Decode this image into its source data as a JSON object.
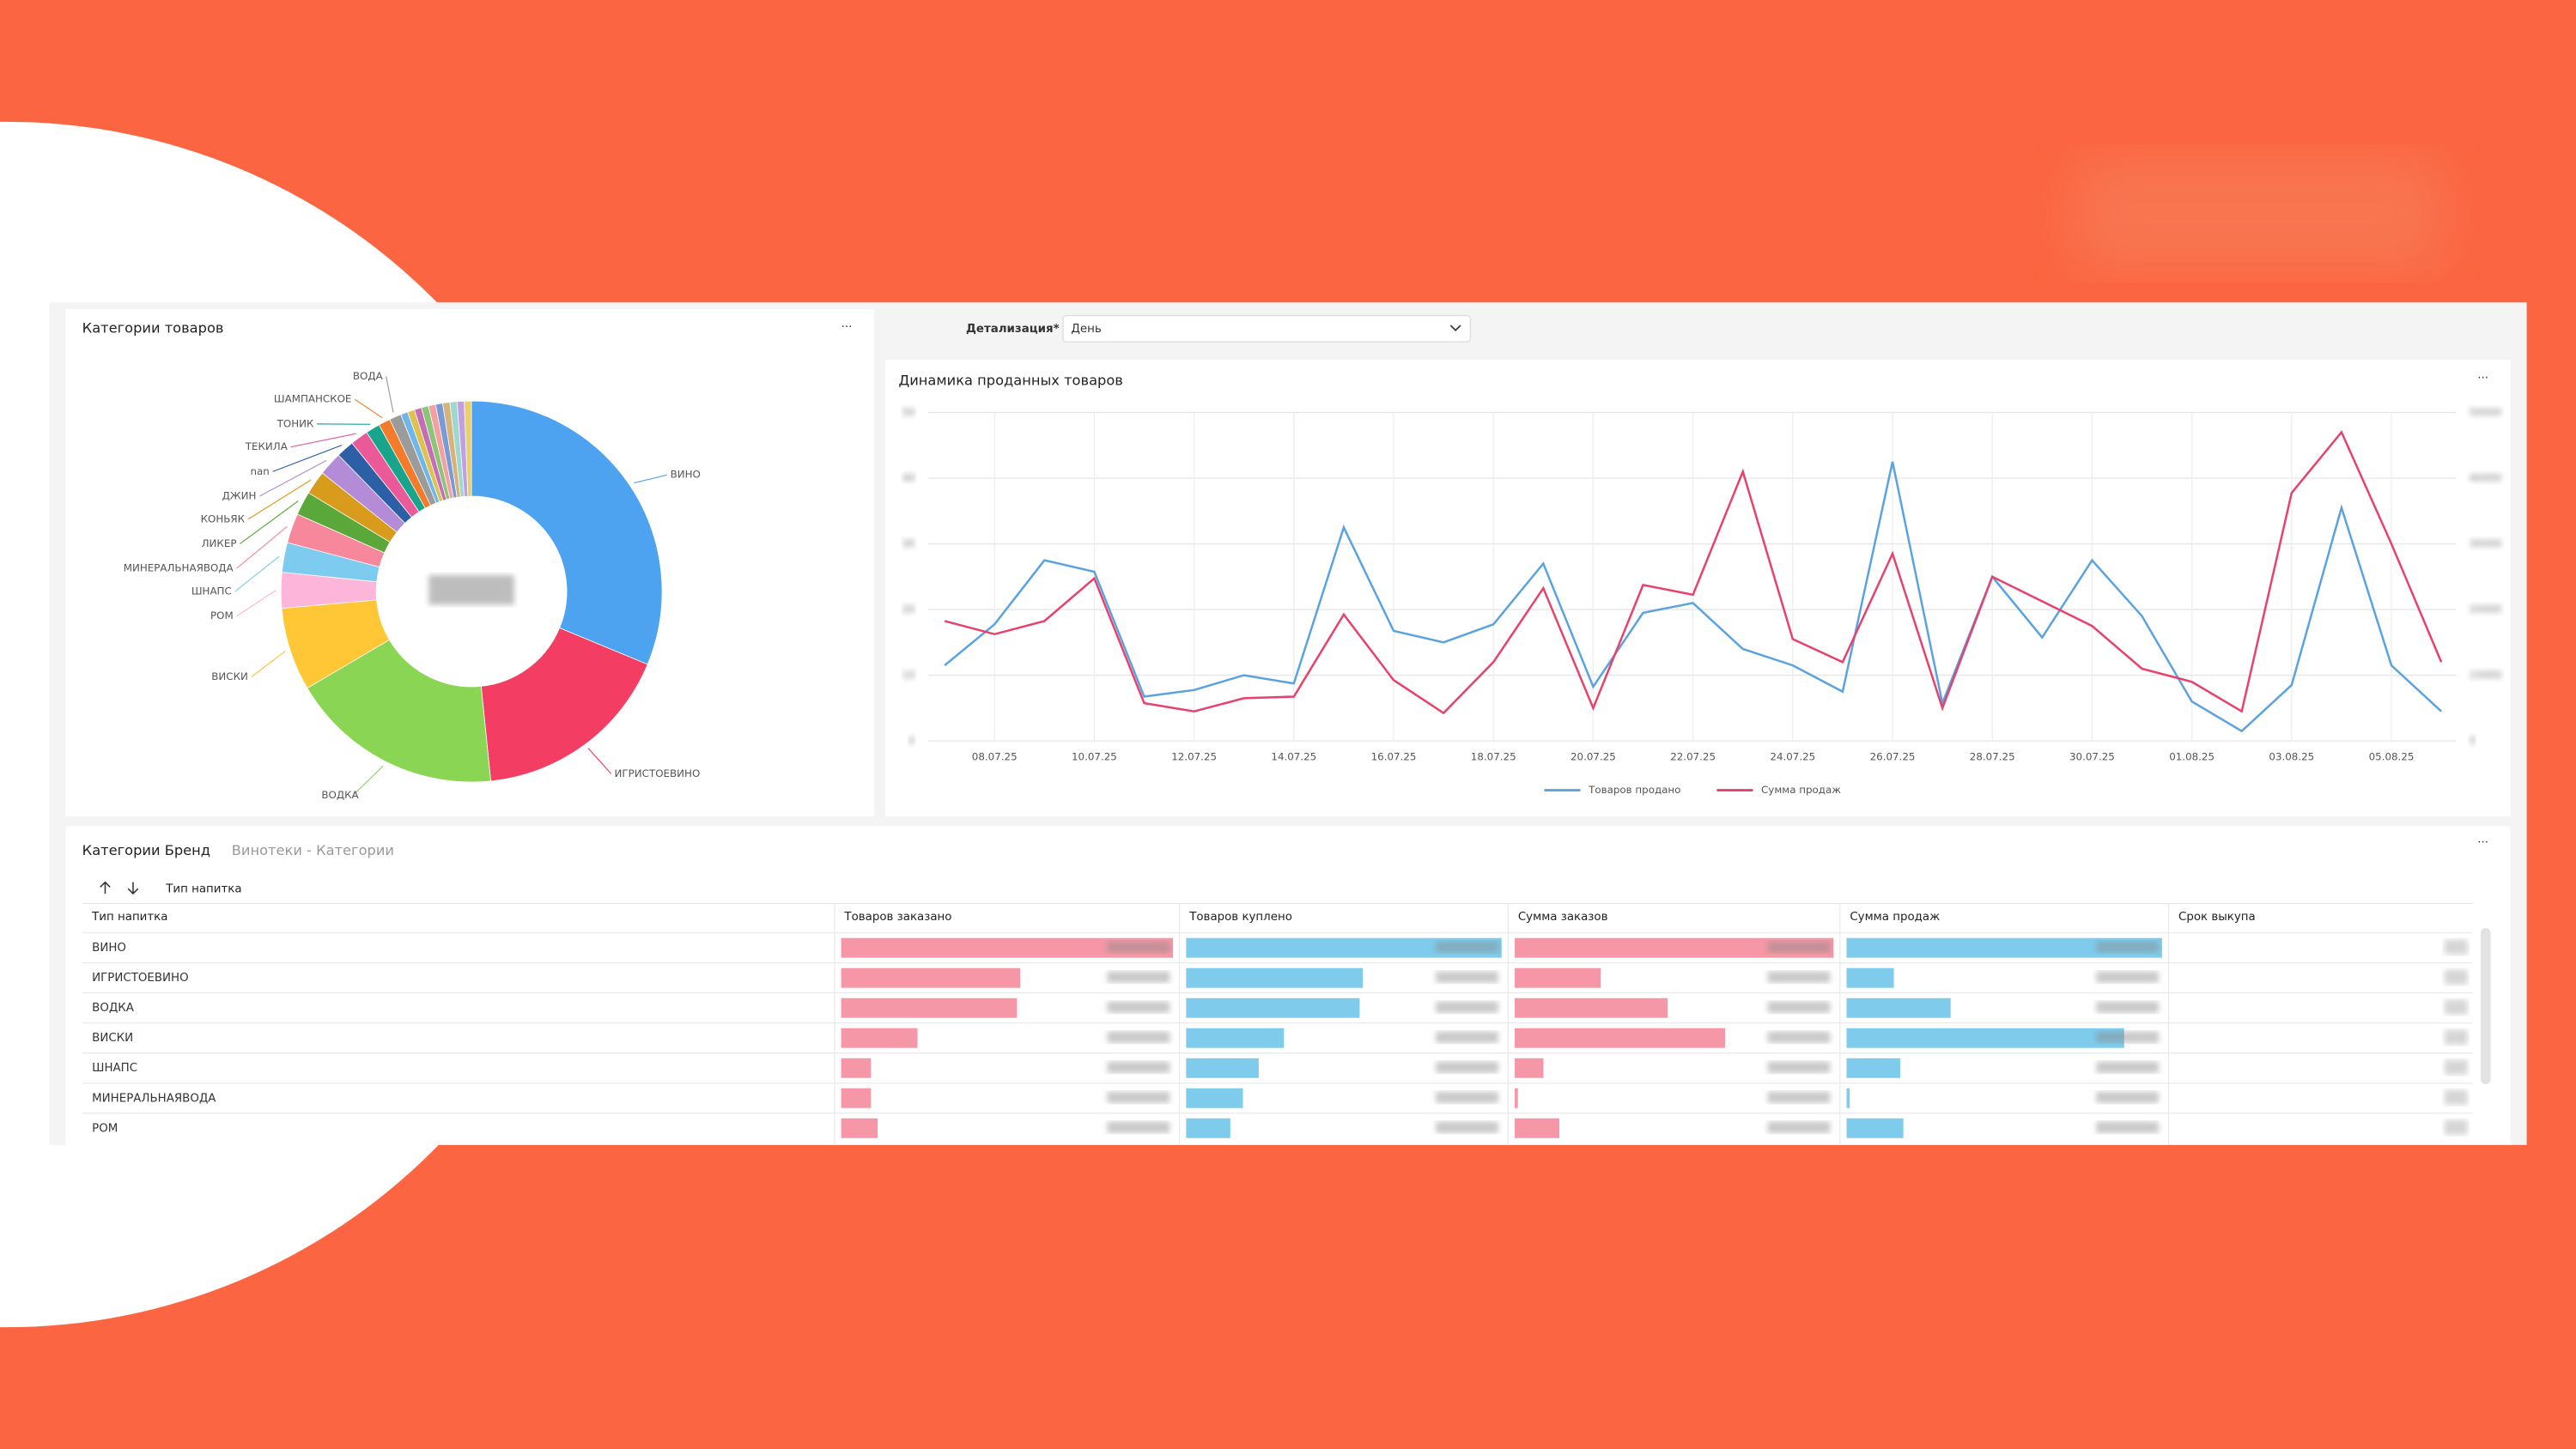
{
  "chart_data": [
    {
      "type": "pie",
      "title": "Категории товаров",
      "categories": [
        "ВИНО",
        "ИГРИСТОЕВИНО",
        "ВОДКА",
        "ВИСКИ",
        "РОМ",
        "ШНАПС",
        "МИНЕРАЛЬНАЯВОДА",
        "ЛИКЕР",
        "КОНЬЯК",
        "ДЖИН",
        "nan",
        "ТЕКИЛА",
        "ТОНИК",
        "ШАМПАНСКОЕ",
        "ВОДА",
        null,
        null,
        null,
        null,
        null,
        null,
        null,
        null,
        null,
        null
      ],
      "values": [
        31,
        17,
        18,
        7,
        3,
        2.5,
        2.5,
        2,
        2,
        2,
        1.5,
        1.5,
        1.2,
        1,
        1,
        0.6,
        0.6,
        0.6,
        0.6,
        0.6,
        0.6,
        0.6,
        0.6,
        0.6,
        0.6
      ],
      "colors": [
        "#4da3ef",
        "#f43d62",
        "#8ad554",
        "#ffc636",
        "#fdb6d9",
        "#7ecbf0",
        "#f7879b",
        "#5aa83a",
        "#d99b1c",
        "#b38bd6",
        "#2d5fa6",
        "#ea5a99",
        "#19a58c",
        "#f47b29",
        "#9b9b9b",
        "#6fb7e8",
        "#e0c050",
        "#c46fb5",
        "#8cc47a",
        "#f2a0a0",
        "#7a9ad6",
        "#d6b37a",
        "#a0d6d0",
        "#c0a0e0",
        "#e8d070"
      ]
    },
    {
      "type": "line",
      "title": "Динамика проданных товаров",
      "categories": [
        null,
        "08.07.25",
        null,
        "10.07.25",
        null,
        "12.07.25",
        null,
        "14.07.25",
        null,
        "16.07.25",
        null,
        "18.07.25",
        null,
        "20.07.25",
        null,
        "22.07.25",
        null,
        "24.07.25",
        null,
        "26.07.25",
        null,
        "28.07.25",
        null,
        "30.07.25",
        null,
        "01.08.25",
        null,
        "03.08.25",
        null,
        "05.08.25",
        null
      ],
      "ylim": [
        0,
        50
      ],
      "yticks": [
        0,
        10,
        20,
        30,
        40,
        50
      ],
      "y2lim": [
        0,
        50000
      ],
      "y2ticks": [
        0,
        10000,
        20000,
        30000,
        40000,
        50000
      ],
      "grid": true,
      "series": [
        {
          "name": "Товаров продано",
          "color": "#5aa2e0",
          "values": [
            11.5,
            17.75,
            27.5,
            25.75,
            6.75,
            7.75,
            10,
            8.75,
            32.5,
            16.75,
            15,
            17.75,
            27,
            8.25,
            19.5,
            21,
            14,
            11.5,
            7.5,
            42.5,
            5.75,
            25,
            15.75,
            27.5,
            19,
            6,
            1.5,
            8.5,
            35.5,
            11.5,
            4.5
          ]
        },
        {
          "name": "Сумма продаж",
          "color": "#e8416b",
          "axis": "y2",
          "values": [
            18250,
            16250,
            18250,
            24750,
            5750,
            4500,
            6500,
            6750,
            19250,
            9250,
            4250,
            12000,
            23250,
            5000,
            23750,
            22250,
            41000,
            15500,
            12000,
            28500,
            5000,
            25000,
            21250,
            17500,
            11000,
            9000,
            4500,
            37750,
            47000,
            30000,
            12000
          ]
        }
      ]
    }
  ],
  "filter": {
    "label": "Детализация*",
    "value": "День"
  },
  "table": {
    "tabs": [
      "Категории Бренд",
      "Винотеки - Категории"
    ],
    "sort_label": "Тип напитка",
    "columns": [
      "Тип напитка",
      "Товаров заказано",
      "Товаров куплено",
      "Сумма заказов",
      "Сумма продаж",
      "Срок выкупа"
    ],
    "bar_colors": [
      "#f597a6",
      "#7ecbeb",
      "#f597a6",
      "#7ecbeb"
    ],
    "rows": [
      [
        "ВИНО",
        100,
        100,
        100,
        100
      ],
      [
        "ИГРИСТОЕВИНО",
        54,
        56,
        27,
        15
      ],
      [
        "ВОДКА",
        53,
        55,
        48,
        33
      ],
      [
        "ВИСКИ",
        23,
        31,
        66,
        88
      ],
      [
        "ШНАПС",
        9,
        23,
        9,
        17
      ],
      [
        "МИНЕРАЛЬНАЯВОДА",
        9,
        18,
        1,
        1
      ],
      [
        "РОМ",
        11,
        14,
        14,
        18
      ]
    ]
  }
}
